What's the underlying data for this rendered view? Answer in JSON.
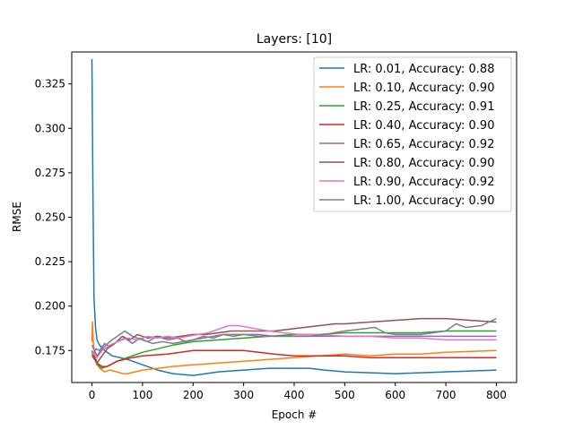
{
  "chart_data": {
    "type": "line",
    "title": "Layers: [10]",
    "xlabel": "Epoch #",
    "ylabel": "RMSE",
    "xlim": [
      -40,
      840
    ],
    "ylim": [
      0.157,
      0.343
    ],
    "x_ticks": [
      0,
      100,
      200,
      300,
      400,
      500,
      600,
      700,
      800
    ],
    "x_tick_labels": [
      "0",
      "100",
      "200",
      "300",
      "400",
      "500",
      "600",
      "700",
      "800"
    ],
    "y_ticks": [
      0.175,
      0.2,
      0.225,
      0.25,
      0.275,
      0.3,
      0.325
    ],
    "y_tick_labels": [
      "0.175",
      "0.200",
      "0.225",
      "0.250",
      "0.275",
      "0.300",
      "0.325"
    ],
    "grid": false,
    "legend_position": "top-right",
    "series": [
      {
        "name": "LR: 0.01, Accuracy: 0.88",
        "color": "#1f77b4",
        "points": [
          [
            0,
            0.339
          ],
          [
            2,
            0.26
          ],
          [
            4,
            0.205
          ],
          [
            7,
            0.188
          ],
          [
            10,
            0.181
          ],
          [
            15,
            0.178
          ],
          [
            25,
            0.175
          ],
          [
            40,
            0.172
          ],
          [
            70,
            0.17
          ],
          [
            100,
            0.167
          ],
          [
            130,
            0.164
          ],
          [
            160,
            0.162
          ],
          [
            200,
            0.161
          ],
          [
            250,
            0.163
          ],
          [
            300,
            0.164
          ],
          [
            350,
            0.165
          ],
          [
            400,
            0.165
          ],
          [
            430,
            0.165
          ],
          [
            460,
            0.164
          ],
          [
            500,
            0.163
          ],
          [
            600,
            0.162
          ],
          [
            700,
            0.163
          ],
          [
            800,
            0.164
          ]
        ]
      },
      {
        "name": "LR: 0.10, Accuracy: 0.90",
        "color": "#ff7f0e",
        "points": [
          [
            0,
            0.18
          ],
          [
            1,
            0.191
          ],
          [
            3,
            0.178
          ],
          [
            8,
            0.17
          ],
          [
            15,
            0.165
          ],
          [
            25,
            0.163
          ],
          [
            35,
            0.164
          ],
          [
            50,
            0.163
          ],
          [
            60,
            0.162
          ],
          [
            70,
            0.162
          ],
          [
            100,
            0.164
          ],
          [
            130,
            0.165
          ],
          [
            160,
            0.166
          ],
          [
            200,
            0.167
          ],
          [
            250,
            0.168
          ],
          [
            300,
            0.169
          ],
          [
            350,
            0.17
          ],
          [
            400,
            0.171
          ],
          [
            450,
            0.172
          ],
          [
            500,
            0.173
          ],
          [
            550,
            0.172
          ],
          [
            600,
            0.173
          ],
          [
            650,
            0.173
          ],
          [
            700,
            0.174
          ],
          [
            800,
            0.175
          ]
        ]
      },
      {
        "name": "LR: 0.25, Accuracy: 0.91",
        "color": "#2ca02c",
        "points": [
          [
            0,
            0.175
          ],
          [
            5,
            0.171
          ],
          [
            10,
            0.167
          ],
          [
            20,
            0.165
          ],
          [
            30,
            0.166
          ],
          [
            50,
            0.169
          ],
          [
            80,
            0.172
          ],
          [
            100,
            0.174
          ],
          [
            130,
            0.176
          ],
          [
            160,
            0.178
          ],
          [
            200,
            0.18
          ],
          [
            250,
            0.181
          ],
          [
            300,
            0.182
          ],
          [
            350,
            0.183
          ],
          [
            400,
            0.184
          ],
          [
            450,
            0.184
          ],
          [
            500,
            0.185
          ],
          [
            550,
            0.185
          ],
          [
            600,
            0.185
          ],
          [
            650,
            0.185
          ],
          [
            700,
            0.186
          ],
          [
            800,
            0.186
          ]
        ]
      },
      {
        "name": "LR: 0.40, Accuracy: 0.90",
        "color": "#d62728",
        "points": [
          [
            0,
            0.174
          ],
          [
            5,
            0.171
          ],
          [
            10,
            0.168
          ],
          [
            20,
            0.166
          ],
          [
            30,
            0.166
          ],
          [
            50,
            0.169
          ],
          [
            80,
            0.171
          ],
          [
            100,
            0.172
          ],
          [
            150,
            0.173
          ],
          [
            200,
            0.175
          ],
          [
            250,
            0.175
          ],
          [
            300,
            0.175
          ],
          [
            330,
            0.174
          ],
          [
            360,
            0.173
          ],
          [
            400,
            0.172
          ],
          [
            450,
            0.172
          ],
          [
            500,
            0.172
          ],
          [
            550,
            0.171
          ],
          [
            600,
            0.171
          ],
          [
            700,
            0.171
          ],
          [
            800,
            0.171
          ]
        ]
      },
      {
        "name": "LR: 0.65, Accuracy: 0.92",
        "color": "#9467bd",
        "points": [
          [
            0,
            0.172
          ],
          [
            8,
            0.176
          ],
          [
            15,
            0.175
          ],
          [
            25,
            0.179
          ],
          [
            35,
            0.177
          ],
          [
            50,
            0.18
          ],
          [
            65,
            0.182
          ],
          [
            80,
            0.179
          ],
          [
            95,
            0.182
          ],
          [
            110,
            0.18
          ],
          [
            130,
            0.183
          ],
          [
            150,
            0.181
          ],
          [
            170,
            0.182
          ],
          [
            185,
            0.18
          ],
          [
            200,
            0.181
          ],
          [
            220,
            0.183
          ],
          [
            240,
            0.182
          ],
          [
            260,
            0.184
          ],
          [
            280,
            0.183
          ],
          [
            300,
            0.184
          ],
          [
            330,
            0.184
          ],
          [
            360,
            0.183
          ],
          [
            400,
            0.183
          ],
          [
            450,
            0.183
          ],
          [
            500,
            0.183
          ],
          [
            550,
            0.183
          ],
          [
            600,
            0.183
          ],
          [
            650,
            0.183
          ],
          [
            700,
            0.183
          ],
          [
            750,
            0.183
          ],
          [
            800,
            0.183
          ]
        ]
      },
      {
        "name": "LR: 0.80, Accuracy: 0.90",
        "color": "#8c564b",
        "points": [
          [
            0,
            0.172
          ],
          [
            10,
            0.168
          ],
          [
            20,
            0.172
          ],
          [
            30,
            0.176
          ],
          [
            45,
            0.179
          ],
          [
            60,
            0.183
          ],
          [
            75,
            0.181
          ],
          [
            90,
            0.184
          ],
          [
            110,
            0.182
          ],
          [
            130,
            0.183
          ],
          [
            150,
            0.182
          ],
          [
            175,
            0.183
          ],
          [
            200,
            0.184
          ],
          [
            225,
            0.184
          ],
          [
            250,
            0.185
          ],
          [
            275,
            0.186
          ],
          [
            300,
            0.186
          ],
          [
            330,
            0.186
          ],
          [
            360,
            0.186
          ],
          [
            390,
            0.187
          ],
          [
            420,
            0.188
          ],
          [
            450,
            0.189
          ],
          [
            480,
            0.19
          ],
          [
            500,
            0.19
          ],
          [
            550,
            0.191
          ],
          [
            600,
            0.192
          ],
          [
            650,
            0.193
          ],
          [
            700,
            0.193
          ],
          [
            750,
            0.192
          ],
          [
            800,
            0.191
          ]
        ]
      },
      {
        "name": "LR: 0.90, Accuracy: 0.92",
        "color": "#e377c2",
        "points": [
          [
            0,
            0.174
          ],
          [
            10,
            0.171
          ],
          [
            20,
            0.175
          ],
          [
            35,
            0.178
          ],
          [
            50,
            0.18
          ],
          [
            70,
            0.182
          ],
          [
            90,
            0.181
          ],
          [
            110,
            0.183
          ],
          [
            130,
            0.182
          ],
          [
            150,
            0.183
          ],
          [
            170,
            0.182
          ],
          [
            190,
            0.183
          ],
          [
            210,
            0.184
          ],
          [
            230,
            0.185
          ],
          [
            250,
            0.187
          ],
          [
            270,
            0.189
          ],
          [
            290,
            0.189
          ],
          [
            310,
            0.188
          ],
          [
            330,
            0.187
          ],
          [
            350,
            0.186
          ],
          [
            380,
            0.185
          ],
          [
            410,
            0.184
          ],
          [
            450,
            0.184
          ],
          [
            500,
            0.183
          ],
          [
            550,
            0.183
          ],
          [
            600,
            0.182
          ],
          [
            650,
            0.182
          ],
          [
            700,
            0.181
          ],
          [
            750,
            0.181
          ],
          [
            800,
            0.181
          ]
        ]
      },
      {
        "name": "LR: 1.00, Accuracy: 0.90",
        "color": "#7f7f7f",
        "points": [
          [
            0,
            0.178
          ],
          [
            10,
            0.172
          ],
          [
            20,
            0.176
          ],
          [
            35,
            0.18
          ],
          [
            50,
            0.183
          ],
          [
            65,
            0.186
          ],
          [
            80,
            0.183
          ],
          [
            100,
            0.181
          ],
          [
            120,
            0.179
          ],
          [
            140,
            0.18
          ],
          [
            160,
            0.179
          ],
          [
            180,
            0.18
          ],
          [
            200,
            0.181
          ],
          [
            220,
            0.182
          ],
          [
            240,
            0.183
          ],
          [
            260,
            0.184
          ],
          [
            280,
            0.184
          ],
          [
            300,
            0.184
          ],
          [
            330,
            0.183
          ],
          [
            360,
            0.183
          ],
          [
            400,
            0.183
          ],
          [
            430,
            0.183
          ],
          [
            460,
            0.184
          ],
          [
            500,
            0.186
          ],
          [
            530,
            0.187
          ],
          [
            560,
            0.188
          ],
          [
            580,
            0.185
          ],
          [
            600,
            0.184
          ],
          [
            650,
            0.184
          ],
          [
            700,
            0.186
          ],
          [
            720,
            0.19
          ],
          [
            740,
            0.188
          ],
          [
            770,
            0.189
          ],
          [
            800,
            0.193
          ]
        ]
      }
    ]
  }
}
